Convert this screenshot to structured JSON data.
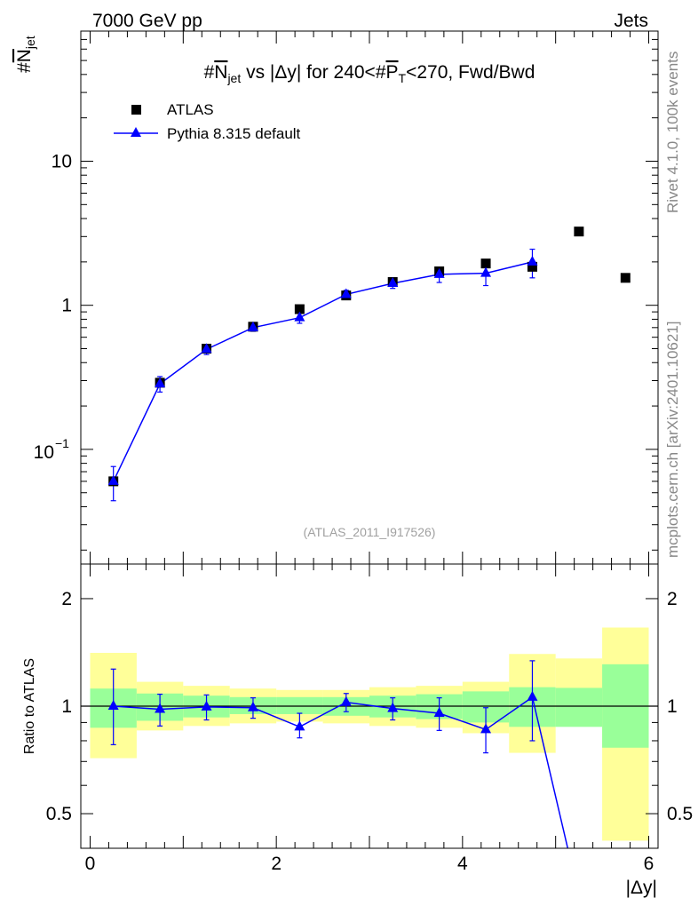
{
  "header": {
    "left": "7000 GeV pp",
    "right": "Jets"
  },
  "title": {
    "prefix": "#",
    "n": "N",
    "n_sub": "jet",
    "mid": " vs |Δy| for 240<#",
    "p": "P",
    "p_sub": "T",
    "suffix": "<270, Fwd/Bwd"
  },
  "ylabel_top": {
    "prefix": "#",
    "n": "N",
    "sub": "jet"
  },
  "ylabel_bottom": "Ratio to ATLAS",
  "xlabel": "|Δy|",
  "side_text_upper": "Rivet 4.1.0,  100k events",
  "side_text_lower": "mcplots.cern.ch [arXiv:2401.10621]",
  "watermark": "(ATLAS_2011_I917526)",
  "legend": {
    "data_label": "ATLAS",
    "mc_label": "Pythia 8.315 default"
  },
  "colors": {
    "mc": "#0000ff",
    "band_inner": "#99ff99",
    "band_outer": "#ffff99"
  },
  "top_ticks": {
    "ten": "10",
    "one": "1",
    "tenth_base": "10",
    "tenth_exp": "−1"
  },
  "ratio_ticks": [
    "0.5",
    "1",
    "2"
  ],
  "x_ticks": [
    "0",
    "2",
    "4",
    "6"
  ],
  "chart_data": {
    "type": "scatter",
    "x_range": [
      -0.1,
      6.1
    ],
    "y_range_top": [
      0.016,
      80
    ],
    "y_log_top": true,
    "y_range_ratio": [
      0.4,
      2.5
    ],
    "y_log_ratio": true,
    "bins": [
      [
        0.0,
        0.5
      ],
      [
        0.5,
        1.0
      ],
      [
        1.0,
        1.5
      ],
      [
        1.5,
        2.0
      ],
      [
        2.0,
        2.5
      ],
      [
        2.5,
        3.0
      ],
      [
        3.0,
        3.5
      ],
      [
        3.5,
        4.0
      ],
      [
        4.0,
        4.5
      ],
      [
        4.5,
        5.0
      ],
      [
        5.0,
        5.5
      ],
      [
        5.5,
        6.0
      ]
    ],
    "atlas": {
      "name": "ATLAS",
      "x": [
        0.25,
        0.75,
        1.25,
        1.75,
        2.25,
        2.75,
        3.25,
        3.75,
        4.25,
        4.75,
        5.25,
        5.75
      ],
      "y": [
        0.06,
        0.29,
        0.5,
        0.71,
        0.94,
        1.17,
        1.45,
        1.72,
        1.95,
        1.85,
        3.25,
        1.55
      ]
    },
    "pythia": {
      "name": "Pythia 8.315 default",
      "x": [
        0.25,
        0.75,
        1.25,
        1.75,
        2.25,
        2.75,
        3.25,
        3.75,
        4.25,
        4.75
      ],
      "y": [
        0.06,
        0.285,
        0.495,
        0.7,
        0.82,
        1.19,
        1.42,
        1.64,
        1.67,
        2.0
      ],
      "err": [
        0.016,
        0.035,
        0.04,
        0.04,
        0.07,
        0.08,
        0.11,
        0.2,
        0.3,
        0.45
      ]
    },
    "ratio": {
      "x": [
        0.25,
        0.75,
        1.25,
        1.75,
        2.25,
        2.75,
        3.25,
        3.75,
        4.25,
        4.75
      ],
      "y": [
        1.0,
        0.98,
        0.995,
        0.99,
        0.875,
        1.025,
        0.985,
        0.955,
        0.86,
        1.06
      ],
      "err_up": [
        0.27,
        0.1,
        0.08,
        0.065,
        0.08,
        0.06,
        0.07,
        0.1,
        0.13,
        0.28
      ],
      "err_down": [
        0.22,
        0.1,
        0.08,
        0.065,
        0.06,
        0.06,
        0.07,
        0.1,
        0.12,
        0.26
      ],
      "tail_to": {
        "x": 5.13,
        "y": 0.38
      }
    },
    "bands": {
      "inner_lo": [
        0.87,
        0.91,
        0.93,
        0.95,
        0.95,
        0.94,
        0.93,
        0.92,
        0.9,
        0.875,
        0.875,
        0.765
      ],
      "inner_hi": [
        1.12,
        1.085,
        1.07,
        1.06,
        1.06,
        1.06,
        1.07,
        1.08,
        1.1,
        1.13,
        1.125,
        1.31
      ],
      "outer_lo": [
        0.715,
        0.855,
        0.88,
        0.895,
        0.905,
        0.895,
        0.88,
        0.87,
        0.84,
        0.74,
        0.895,
        0.42
      ],
      "outer_hi": [
        1.41,
        1.17,
        1.14,
        1.12,
        1.11,
        1.11,
        1.13,
        1.14,
        1.17,
        1.4,
        1.36,
        1.66
      ]
    }
  }
}
